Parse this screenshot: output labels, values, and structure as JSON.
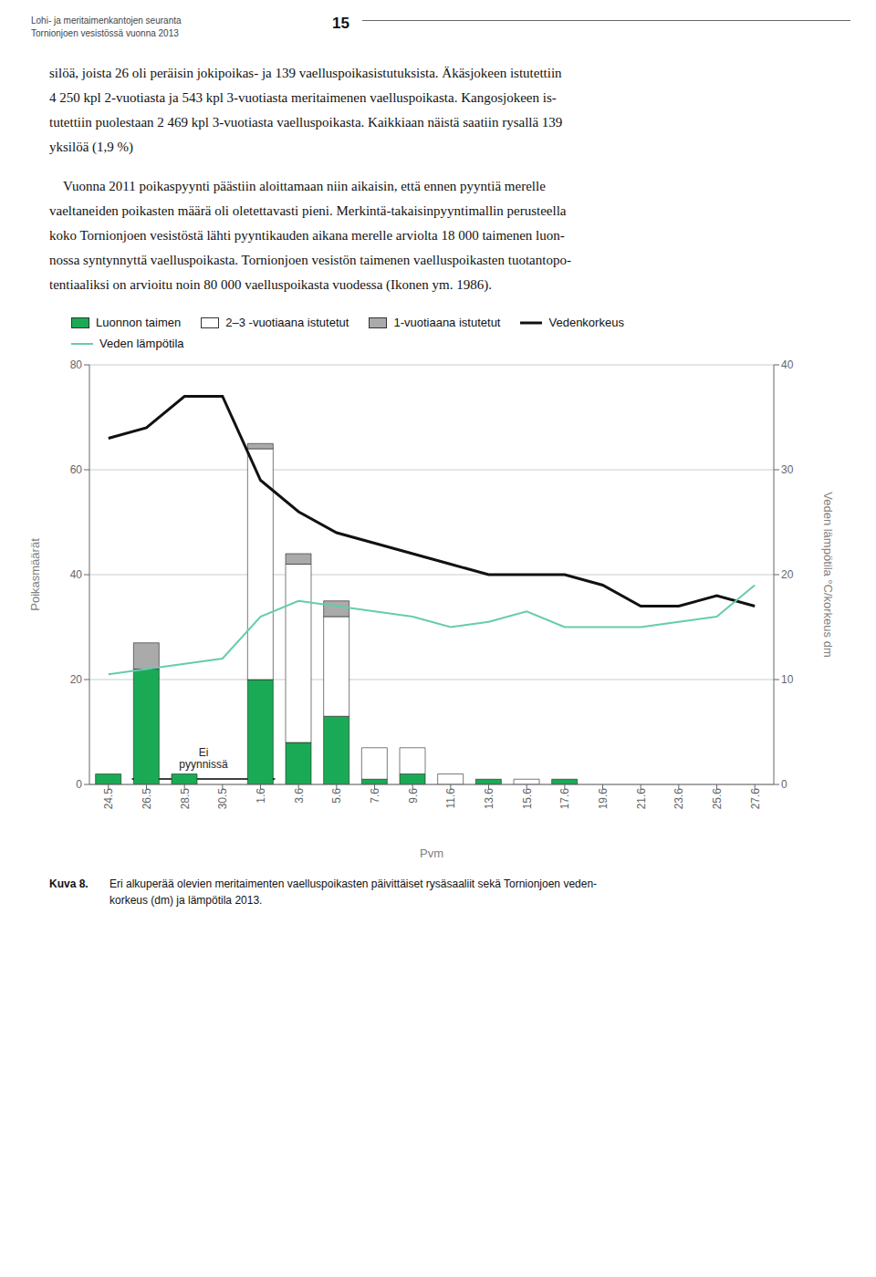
{
  "chart_data": {
    "type": "bar",
    "stacked": true,
    "grid": true,
    "header": [
      "Lohi- ja meritaimenkantojen seuranta",
      "Tornionjoen vesistössä vuonna 2013"
    ],
    "page_number": "15",
    "body": [
      "silöä, joista 26 oli peräisin jokipoikas- ja 139 vaelluspoikasistutuksista. Äkäsjokeen istutettiin\n4 250 kpl 2-vuotiasta ja 543 kpl 3-vuotiasta meritaimenen vaelluspoikasta. Kangosjokeen is-\ntutettiin puolestaan 2 469 kpl 3-vuotiasta vaelluspoikasta. Kaikkiaan näistä saatiin rysallä 139\nyksilöä (1,9 %)",
      "\tVuonna 2011 poikaspyynti päästiin aloittamaan niin aikaisin, että ennen pyyntiä merelle\nvaeltaneiden poikasten määrä oli oletettavasti pieni. Merkintä-takaisinpyyntimallin perusteella\nkoko Tornionjoen vesistöstä lähti pyyntikauden aikana merelle arviolta 18 000 taimenen luon-\nnossa syntynnyttä vaelluspoikasta. Tornionjoen vesistön taimenen vaelluspoikasten tuotantopo-\ntentiaaliksi on arvioitu noin 80 000 vaelluspoikasta vuodessa (Ikonen ym. 1986)."
    ],
    "caption_label": "Kuva 8.",
    "caption": "Eri alkuperää olevien meritaimenten vaelluspoikasten päivittäiset rysäsaaliit sekä Tornionjoen veden-\nkorkeus (dm) ja lämpötila 2013.",
    "categories": [
      "24.5",
      "26.5",
      "28.5",
      "30.5",
      "1.6",
      "3.6",
      "5.6",
      "7.6",
      "9.6",
      "11.6",
      "13.6",
      "15.6",
      "17.6",
      "19.6",
      "21.6",
      "23.6",
      "25.6",
      "27.6"
    ],
    "xlabel": "Pvm",
    "ylabel": "Poikasmäärät",
    "y2label": "Veden lämpötila °C/korkeus dm",
    "ylim": [
      0,
      80
    ],
    "yticks": [
      0,
      20,
      40,
      60,
      80
    ],
    "y2lim": [
      0,
      40
    ],
    "y2ticks": [
      0,
      10,
      20,
      30,
      40
    ],
    "series": [
      {
        "name": "Luonnon taimen",
        "type": "bar",
        "color": "#1aaa55",
        "values": [
          2,
          22,
          2,
          0,
          20,
          8,
          13,
          1,
          2,
          0,
          1,
          0,
          1,
          0,
          0,
          0,
          0,
          0
        ]
      },
      {
        "name": "2–3 -vuotiaana istutetut",
        "type": "bar",
        "color": "#ffffff",
        "values": [
          0,
          0,
          0,
          0,
          44,
          34,
          19,
          6,
          5,
          2,
          0,
          1,
          0,
          0,
          0,
          0,
          0,
          0
        ]
      },
      {
        "name": "1-vuotiaana istutetut",
        "type": "bar",
        "color": "#aaaaaa",
        "values": [
          0,
          5,
          0,
          0,
          1,
          2,
          3,
          0,
          0,
          0,
          0,
          0,
          0,
          0,
          0,
          0,
          0,
          0
        ]
      },
      {
        "name": "Vedenkorkeus",
        "type": "line",
        "axis": "y2",
        "color": "#111111",
        "values": [
          33,
          34,
          37,
          37,
          29,
          26,
          24,
          23,
          22,
          21,
          20,
          20,
          20,
          19,
          17,
          17,
          18,
          17
        ]
      },
      {
        "name": "Veden lämpötila",
        "type": "line",
        "axis": "y2",
        "color": "#66ccaa",
        "values": [
          10.5,
          11,
          11.5,
          12,
          16,
          17.5,
          17,
          16.5,
          16,
          15,
          15.5,
          16.5,
          15,
          15,
          15,
          15.5,
          16,
          19
        ]
      }
    ],
    "annotations": [
      {
        "text": "Ei\npyynnissä",
        "from": "28.5",
        "to": "30.5"
      }
    ]
  }
}
